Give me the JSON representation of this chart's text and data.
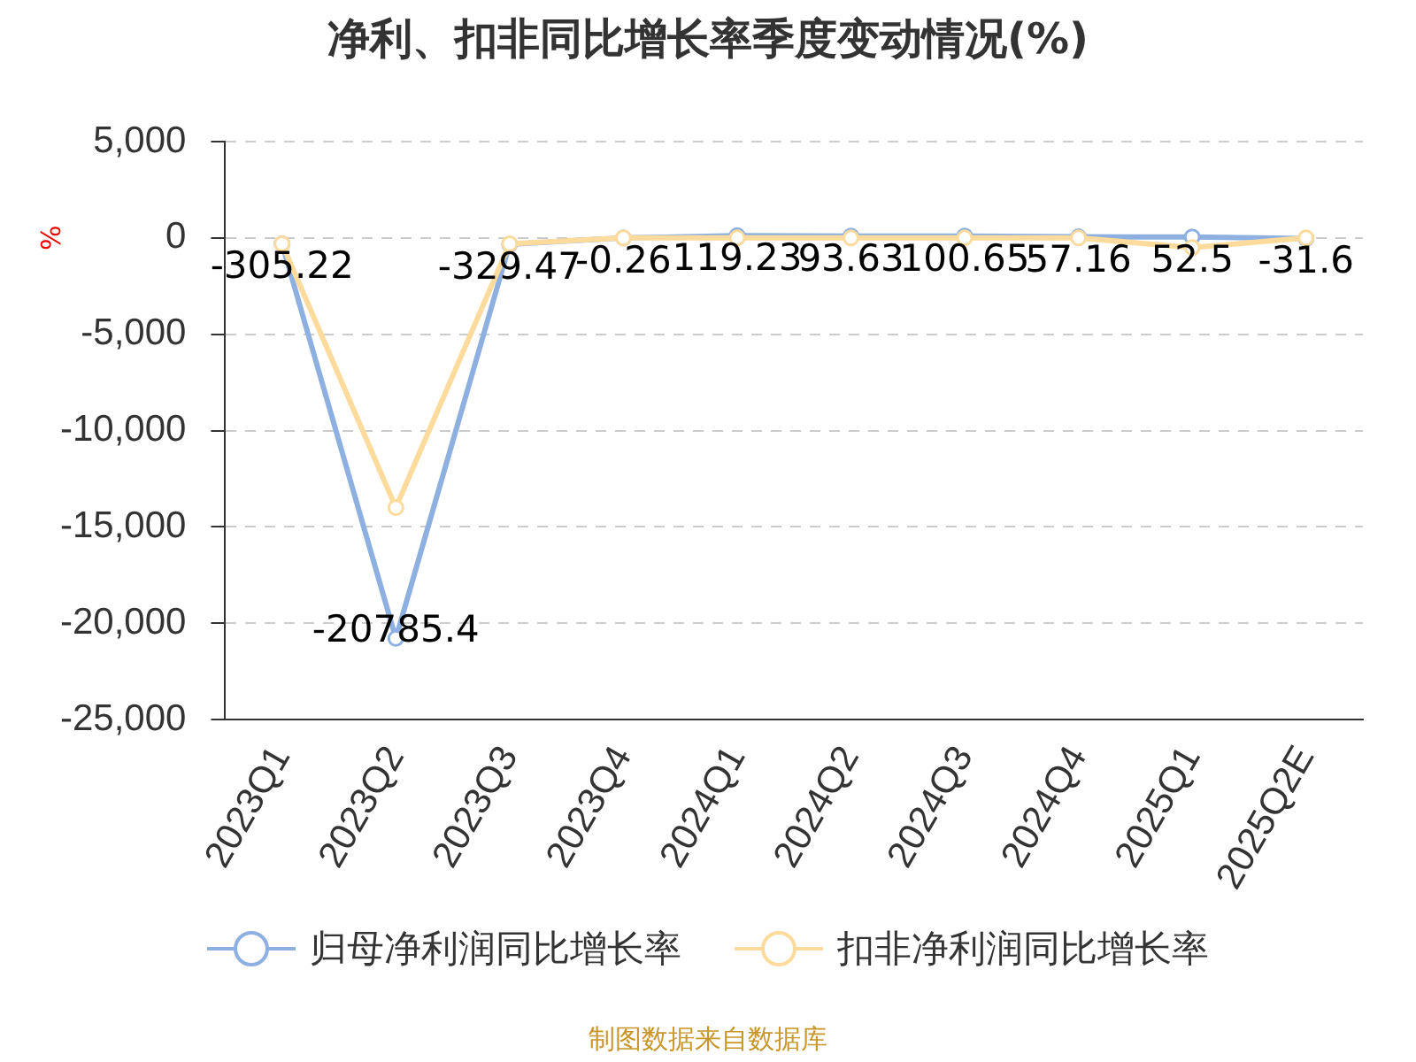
{
  "chart_data": {
    "type": "line",
    "title": "净利、扣非同比增长率季度变动情况(%)",
    "ylabel": "%",
    "categories": [
      "2023Q1",
      "2023Q2",
      "2023Q3",
      "2023Q4",
      "2024Q1",
      "2024Q2",
      "2024Q3",
      "2024Q4",
      "2025Q1",
      "2025Q2E"
    ],
    "series": [
      {
        "name": "归母净利润同比增长率",
        "color": "#8eb0e0",
        "values": [
          -305.22,
          -20785.4,
          -329.47,
          -0.26,
          119.23,
          93.63,
          100.65,
          57.16,
          52.5,
          -31.6
        ],
        "value_labels": [
          "-305.22",
          "-20785.4",
          "-329.47",
          "-0.26",
          "119.23",
          "93.63",
          "100.65",
          "57.16",
          "52.5",
          "-31.6"
        ]
      },
      {
        "name": "扣非净利润同比增长率",
        "color": "#fddb9c",
        "values": [
          -300,
          -14000,
          -300,
          0,
          0,
          0,
          0,
          0,
          -500,
          0
        ]
      }
    ],
    "ylim": [
      -25000,
      5000
    ],
    "yticks": [
      {
        "value": -25000,
        "label": "-25,000"
      },
      {
        "value": -20000,
        "label": "-20,000"
      },
      {
        "value": -15000,
        "label": "-15,000"
      },
      {
        "value": -10000,
        "label": "-10,000"
      },
      {
        "value": -5000,
        "label": "-5,000"
      },
      0,
      {
        "value": 5000,
        "label": "5,000"
      }
    ],
    "grid": "y",
    "legend": "bottom",
    "marker": "circle",
    "line_style": "solid",
    "annotations": [
      "制图数据来自数据库"
    ]
  }
}
